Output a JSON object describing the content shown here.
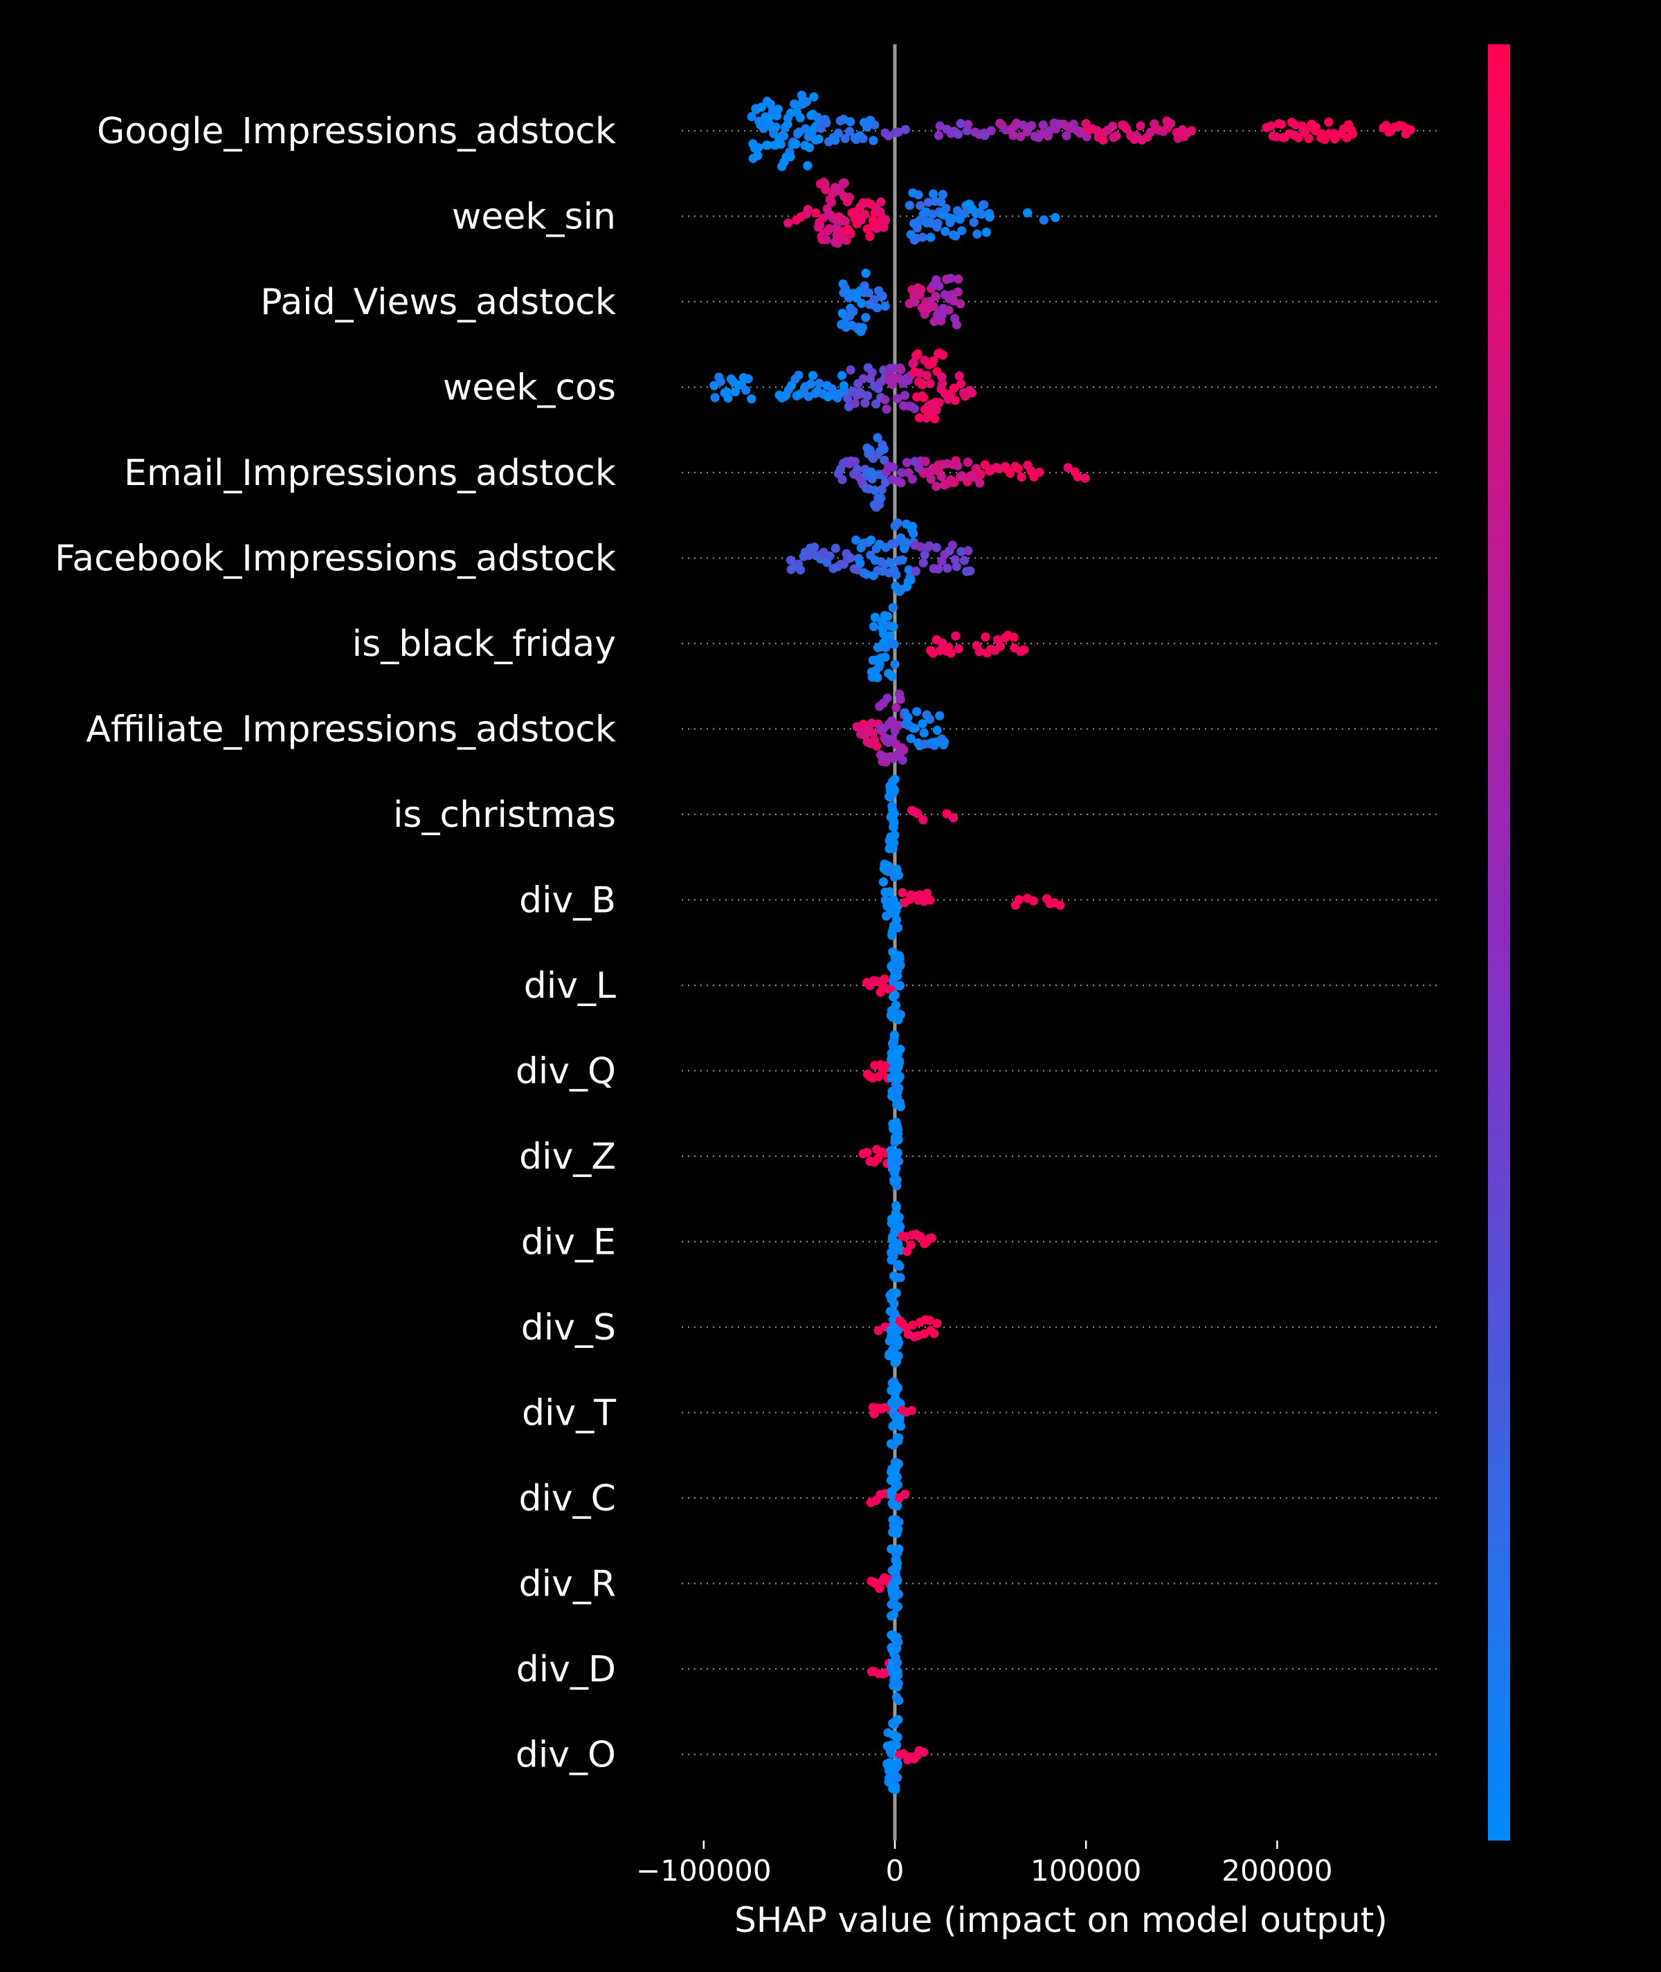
{
  "chart_data": {
    "type": "scatter",
    "subtype": "shap-beeswarm",
    "title": "",
    "xlabel": "SHAP value (impact on model output)",
    "ylabel": "",
    "xlim": [
      -113000,
      283000
    ],
    "x_ticks": [
      -100000,
      0,
      100000,
      200000
    ],
    "x_tick_labels": [
      "−100000",
      "0",
      "100000",
      "200000"
    ],
    "zero_line": 0,
    "grid": "dotted horizontal guide per feature",
    "background": "#000000",
    "colorbar": {
      "low_color": "#008bfb",
      "mid_color": "#8a2cc0",
      "high_color": "#ff0052",
      "placement": "right",
      "tick_labels": []
    },
    "features": [
      {
        "name": "Google_Impressions_adstock",
        "clusters": [
          {
            "x": [
              -75000,
              -40000
            ],
            "v": 0.02,
            "density": 70,
            "width": 0.9
          },
          {
            "x": [
              -40000,
              -10000
            ],
            "v": 0.12,
            "density": 22,
            "width": 0.3
          },
          {
            "x": [
              -5000,
              5000
            ],
            "v": 0.4,
            "density": 5,
            "width": 0.2
          },
          {
            "x": [
              22000,
              50000
            ],
            "v": 0.45,
            "density": 14,
            "width": 0.2
          },
          {
            "x": [
              55000,
              100000
            ],
            "v": 0.6,
            "density": 30,
            "width": 0.2
          },
          {
            "x": [
              100000,
              155000
            ],
            "v": 0.85,
            "density": 34,
            "width": 0.25
          },
          {
            "x": [
              195000,
              240000
            ],
            "v": 0.97,
            "density": 34,
            "width": 0.22
          },
          {
            "x": [
              255000,
              270000
            ],
            "v": 0.98,
            "density": 10,
            "width": 0.15
          }
        ]
      },
      {
        "name": "week_sin",
        "clusters": [
          {
            "x": [
              -55000,
              -42000
            ],
            "v": 0.9,
            "density": 6,
            "width": 0.2
          },
          {
            "x": [
              -40000,
              -25000
            ],
            "v": 0.82,
            "density": 40,
            "width": 0.85
          },
          {
            "x": [
              -25000,
              -5000
            ],
            "v": 0.92,
            "density": 30,
            "width": 0.55
          },
          {
            "x": [
              8000,
              25000
            ],
            "v": 0.12,
            "density": 30,
            "width": 0.6
          },
          {
            "x": [
              25000,
              50000
            ],
            "v": 0.08,
            "density": 26,
            "width": 0.55
          },
          {
            "x": [
              70000,
              85000
            ],
            "v": 0.05,
            "density": 3,
            "width": 0.1
          }
        ]
      },
      {
        "name": "Paid_Views_adstock",
        "clusters": [
          {
            "x": [
              -28000,
              -15000
            ],
            "v": 0.08,
            "density": 30,
            "width": 0.8
          },
          {
            "x": [
              -15000,
              -5000
            ],
            "v": 0.15,
            "density": 10,
            "width": 0.3
          },
          {
            "x": [
              8000,
              20000
            ],
            "v": 0.75,
            "density": 14,
            "width": 0.35
          },
          {
            "x": [
              20000,
              34000
            ],
            "v": 0.6,
            "density": 24,
            "width": 0.6
          }
        ]
      },
      {
        "name": "week_cos",
        "clusters": [
          {
            "x": [
              -95000,
              -75000
            ],
            "v": 0.02,
            "density": 16,
            "width": 0.3
          },
          {
            "x": [
              -60000,
              -25000
            ],
            "v": 0.05,
            "density": 30,
            "width": 0.3
          },
          {
            "x": [
              -25000,
              -5000
            ],
            "v": 0.35,
            "density": 22,
            "width": 0.5
          },
          {
            "x": [
              -5000,
              10000
            ],
            "v": 0.55,
            "density": 24,
            "width": 0.6
          },
          {
            "x": [
              10000,
              25000
            ],
            "v": 0.92,
            "density": 34,
            "width": 0.85
          },
          {
            "x": [
              25000,
              40000
            ],
            "v": 0.9,
            "density": 12,
            "width": 0.35
          }
        ]
      },
      {
        "name": "Email_Impressions_adstock",
        "clusters": [
          {
            "x": [
              -30000,
              -15000
            ],
            "v": 0.35,
            "density": 14,
            "width": 0.3
          },
          {
            "x": [
              -15000,
              -5000
            ],
            "v": 0.2,
            "density": 30,
            "width": 0.9
          },
          {
            "x": [
              -5000,
              15000
            ],
            "v": 0.5,
            "density": 14,
            "width": 0.3
          },
          {
            "x": [
              15000,
              45000
            ],
            "v": 0.78,
            "density": 34,
            "width": 0.35
          },
          {
            "x": [
              45000,
              75000
            ],
            "v": 0.95,
            "density": 16,
            "width": 0.2
          },
          {
            "x": [
              90000,
              100000
            ],
            "v": 0.98,
            "density": 4,
            "width": 0.15
          }
        ]
      },
      {
        "name": "Facebook_Impressions_adstock",
        "clusters": [
          {
            "x": [
              -55000,
              -20000
            ],
            "v": 0.25,
            "density": 26,
            "width": 0.3
          },
          {
            "x": [
              -20000,
              0
            ],
            "v": 0.12,
            "density": 24,
            "width": 0.45
          },
          {
            "x": [
              0,
              10000
            ],
            "v": 0.1,
            "density": 24,
            "width": 0.9
          },
          {
            "x": [
              10000,
              40000
            ],
            "v": 0.4,
            "density": 22,
            "width": 0.35
          }
        ]
      },
      {
        "name": "is_black_friday",
        "clusters": [
          {
            "x": [
              -12000,
              0
            ],
            "v": 0.0,
            "density": 36,
            "width": 0.9
          },
          {
            "x": [
              18000,
              33000
            ],
            "v": 0.97,
            "density": 10,
            "width": 0.25
          },
          {
            "x": [
              43000,
              67000
            ],
            "v": 0.97,
            "density": 14,
            "width": 0.25
          }
        ]
      },
      {
        "name": "Affiliate_Impressions_adstock",
        "clusters": [
          {
            "x": [
              -20000,
              -5000
            ],
            "v": 0.85,
            "density": 18,
            "width": 0.45
          },
          {
            "x": [
              -8000,
              5000
            ],
            "v": 0.55,
            "density": 30,
            "width": 0.9
          },
          {
            "x": [
              5000,
              26000
            ],
            "v": 0.08,
            "density": 24,
            "width": 0.45
          }
        ]
      },
      {
        "name": "is_christmas",
        "clusters": [
          {
            "x": [
              -3000,
              0
            ],
            "v": 0.0,
            "density": 32,
            "width": 0.9
          },
          {
            "x": [
              8000,
              15000
            ],
            "v": 0.98,
            "density": 4,
            "width": 0.15
          },
          {
            "x": [
              27000,
              31000
            ],
            "v": 0.98,
            "density": 2,
            "width": 0.1
          }
        ]
      },
      {
        "name": "div_B",
        "clusters": [
          {
            "x": [
              -6000,
              2000
            ],
            "v": 0.0,
            "density": 30,
            "width": 0.9
          },
          {
            "x": [
              4000,
              18000
            ],
            "v": 0.98,
            "density": 10,
            "width": 0.2
          },
          {
            "x": [
              63000,
              72000
            ],
            "v": 0.98,
            "density": 4,
            "width": 0.15
          },
          {
            "x": [
              79000,
              86000
            ],
            "v": 0.98,
            "density": 4,
            "width": 0.15
          }
        ]
      },
      {
        "name": "div_L",
        "clusters": [
          {
            "x": [
              -15000,
              -2000
            ],
            "v": 0.98,
            "density": 10,
            "width": 0.2
          },
          {
            "x": [
              -2000,
              3000
            ],
            "v": 0.0,
            "density": 34,
            "width": 0.9
          }
        ]
      },
      {
        "name": "div_Q",
        "clusters": [
          {
            "x": [
              -14000,
              -2000
            ],
            "v": 0.98,
            "density": 10,
            "width": 0.2
          },
          {
            "x": [
              -2000,
              3000
            ],
            "v": 0.0,
            "density": 34,
            "width": 0.9
          }
        ]
      },
      {
        "name": "div_Z",
        "clusters": [
          {
            "x": [
              -16000,
              -2000
            ],
            "v": 0.98,
            "density": 10,
            "width": 0.2
          },
          {
            "x": [
              -2000,
              2000
            ],
            "v": 0.0,
            "density": 34,
            "width": 0.9
          }
        ]
      },
      {
        "name": "div_E",
        "clusters": [
          {
            "x": [
              -2000,
              3000
            ],
            "v": 0.0,
            "density": 34,
            "width": 0.9
          },
          {
            "x": [
              4000,
              19000
            ],
            "v": 0.98,
            "density": 12,
            "width": 0.25
          }
        ]
      },
      {
        "name": "div_S",
        "clusters": [
          {
            "x": [
              -8000,
              -3000
            ],
            "v": 0.95,
            "density": 3,
            "width": 0.1
          },
          {
            "x": [
              -3000,
              2000
            ],
            "v": 0.0,
            "density": 34,
            "width": 0.9
          },
          {
            "x": [
              3000,
              22000
            ],
            "v": 0.98,
            "density": 14,
            "width": 0.25
          }
        ]
      },
      {
        "name": "div_T",
        "clusters": [
          {
            "x": [
              -12000,
              -2000
            ],
            "v": 0.98,
            "density": 8,
            "width": 0.15
          },
          {
            "x": [
              -2000,
              3000
            ],
            "v": 0.0,
            "density": 34,
            "width": 0.9
          },
          {
            "x": [
              4000,
              9000
            ],
            "v": 0.98,
            "density": 3,
            "width": 0.1
          }
        ]
      },
      {
        "name": "div_C",
        "clusters": [
          {
            "x": [
              -12000,
              -6000
            ],
            "v": 0.98,
            "density": 4,
            "width": 0.15
          },
          {
            "x": [
              -2000,
              2000
            ],
            "v": 0.0,
            "density": 34,
            "width": 0.9
          },
          {
            "x": [
              3000,
              6000
            ],
            "v": 0.98,
            "density": 2,
            "width": 0.1
          }
        ]
      },
      {
        "name": "div_R",
        "clusters": [
          {
            "x": [
              -13000,
              -2000
            ],
            "v": 0.98,
            "density": 8,
            "width": 0.15
          },
          {
            "x": [
              -2000,
              2000
            ],
            "v": 0.0,
            "density": 34,
            "width": 0.9
          }
        ]
      },
      {
        "name": "div_D",
        "clusters": [
          {
            "x": [
              -12000,
              -2000
            ],
            "v": 0.98,
            "density": 7,
            "width": 0.15
          },
          {
            "x": [
              -2000,
              2000
            ],
            "v": 0.0,
            "density": 34,
            "width": 0.9
          }
        ]
      },
      {
        "name": "div_O",
        "clusters": [
          {
            "x": [
              -4000,
              2000
            ],
            "v": 0.0,
            "density": 34,
            "width": 0.9
          },
          {
            "x": [
              3000,
              15000
            ],
            "v": 0.98,
            "density": 8,
            "width": 0.15
          }
        ]
      }
    ]
  }
}
